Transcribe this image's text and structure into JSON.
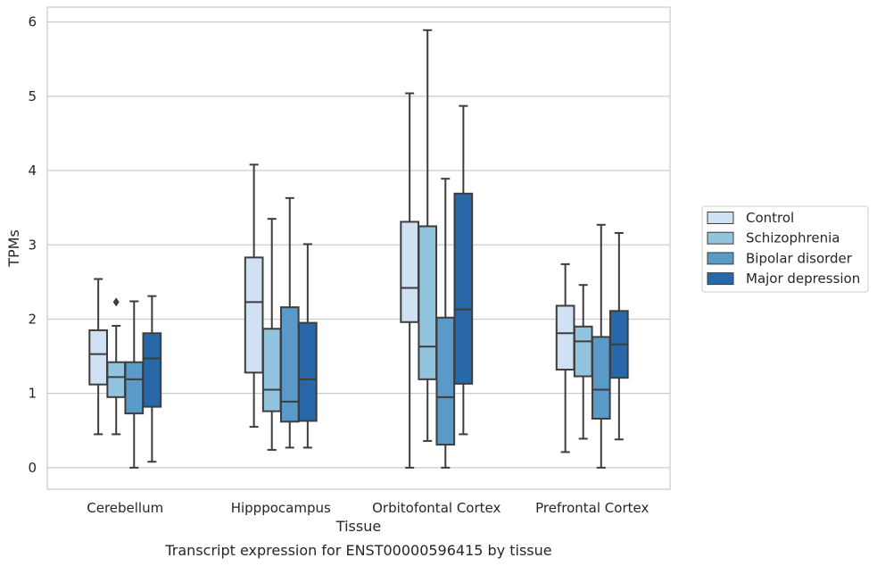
{
  "chart_data": {
    "type": "box",
    "xlabel": "Tissue",
    "ylabel": "TPMs",
    "caption": "Transcript expression for ENST00000596415 by tissue",
    "ylim": [
      -0.29,
      6.2
    ],
    "yticks": [
      0,
      1,
      2,
      3,
      4,
      5,
      6
    ],
    "grid": true,
    "legend_position": "right",
    "categories": [
      "Cerebellum",
      "Hipppocampus",
      "Orbitofontal Cortex",
      "Prefrontal Cortex"
    ],
    "series": [
      {
        "name": "Control",
        "color": "#cfe1f2",
        "boxes": [
          {
            "whislo": 0.45,
            "q1": 1.12,
            "med": 1.53,
            "q3": 1.85,
            "whishi": 2.54,
            "fliers": []
          },
          {
            "whislo": 0.55,
            "q1": 1.28,
            "med": 2.23,
            "q3": 2.83,
            "whishi": 4.08,
            "fliers": []
          },
          {
            "whislo": 0.0,
            "q1": 1.96,
            "med": 2.42,
            "q3": 3.31,
            "whishi": 5.04,
            "fliers": []
          },
          {
            "whislo": 0.21,
            "q1": 1.32,
            "med": 1.81,
            "q3": 2.18,
            "whishi": 2.74,
            "fliers": []
          }
        ]
      },
      {
        "name": "Schizophrenia",
        "color": "#93c4de",
        "boxes": [
          {
            "whislo": 0.45,
            "q1": 0.95,
            "med": 1.22,
            "q3": 1.42,
            "whishi": 1.91,
            "fliers": [
              2.23
            ]
          },
          {
            "whislo": 0.24,
            "q1": 0.76,
            "med": 1.05,
            "q3": 1.87,
            "whishi": 3.35,
            "fliers": []
          },
          {
            "whislo": 0.36,
            "q1": 1.19,
            "med": 1.63,
            "q3": 3.25,
            "whishi": 5.89,
            "fliers": []
          },
          {
            "whislo": 0.39,
            "q1": 1.23,
            "med": 1.7,
            "q3": 1.9,
            "whishi": 2.46,
            "fliers": []
          }
        ]
      },
      {
        "name": "Bipolar disorder",
        "color": "#5a9ac8",
        "boxes": [
          {
            "whislo": 0.0,
            "q1": 0.73,
            "med": 1.19,
            "q3": 1.42,
            "whishi": 2.24,
            "fliers": []
          },
          {
            "whislo": 0.27,
            "q1": 0.62,
            "med": 0.89,
            "q3": 2.16,
            "whishi": 3.63,
            "fliers": []
          },
          {
            "whislo": 0.0,
            "q1": 0.31,
            "med": 0.95,
            "q3": 2.02,
            "whishi": 3.89,
            "fliers": []
          },
          {
            "whislo": 0.0,
            "q1": 0.66,
            "med": 1.05,
            "q3": 1.76,
            "whishi": 3.27,
            "fliers": []
          }
        ]
      },
      {
        "name": "Major depression",
        "color": "#2868a8",
        "boxes": [
          {
            "whislo": 0.08,
            "q1": 0.82,
            "med": 1.47,
            "q3": 1.81,
            "whishi": 2.31,
            "fliers": []
          },
          {
            "whislo": 0.27,
            "q1": 0.63,
            "med": 1.19,
            "q3": 1.95,
            "whishi": 3.01,
            "fliers": []
          },
          {
            "whislo": 0.45,
            "q1": 1.13,
            "med": 2.13,
            "q3": 3.69,
            "whishi": 4.87,
            "fliers": []
          },
          {
            "whislo": 0.38,
            "q1": 1.21,
            "med": 1.66,
            "q3": 2.11,
            "whishi": 3.16,
            "fliers": []
          }
        ]
      }
    ]
  }
}
